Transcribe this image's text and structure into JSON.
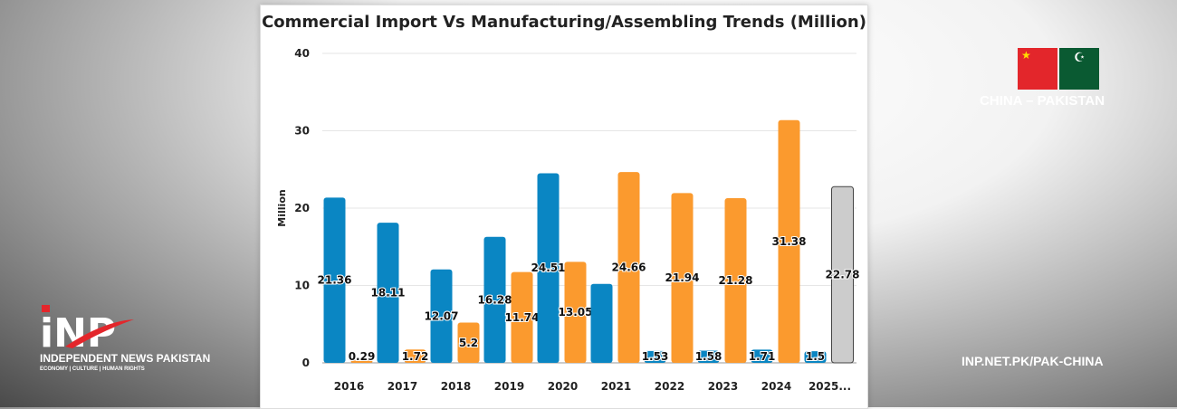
{
  "chart_data": {
    "type": "bar",
    "title": "Commercial Import Vs Manufacturing/Assembling Trends (Million)",
    "ylabel": "Million",
    "ylim": [
      0,
      40
    ],
    "yticks": [
      0,
      10,
      20,
      30,
      40
    ],
    "grid": true,
    "categories": [
      "2016",
      "2017",
      "2018",
      "2019",
      "2020",
      "2021",
      "2022",
      "2023",
      "2024",
      "2025..."
    ],
    "series": [
      {
        "color": "#0a86c3",
        "values": [
          21.36,
          18.11,
          12.07,
          16.28,
          24.51,
          10.2,
          1.53,
          1.58,
          1.71,
          1.5
        ],
        "labels": [
          "21.36",
          "18.11",
          "12.07",
          "16.28",
          "24.51",
          "",
          "1.53",
          "1.58",
          "1.71",
          "1.5"
        ]
      },
      {
        "color": "#fb9a2e",
        "values": [
          0.29,
          1.72,
          5.2,
          11.74,
          13.05,
          24.66,
          21.94,
          21.28,
          31.38,
          22.78
        ],
        "labels": [
          "0.29",
          "1.72",
          "5.2",
          "11.74",
          "13.05",
          "24.66",
          "21.94",
          "21.28",
          "31.38",
          "22.78"
        ],
        "last_color": "#cccccc"
      }
    ]
  },
  "brand": {
    "logo": "iNP",
    "name": "INDEPENDENT NEWS PAKISTAN",
    "tagline": "ECONOMY | CULTURE | HUMAN RIGHTS",
    "country_label": "CHINA – PAKISTAN",
    "url": "INP.NET.PK/PAK-CHINA"
  }
}
